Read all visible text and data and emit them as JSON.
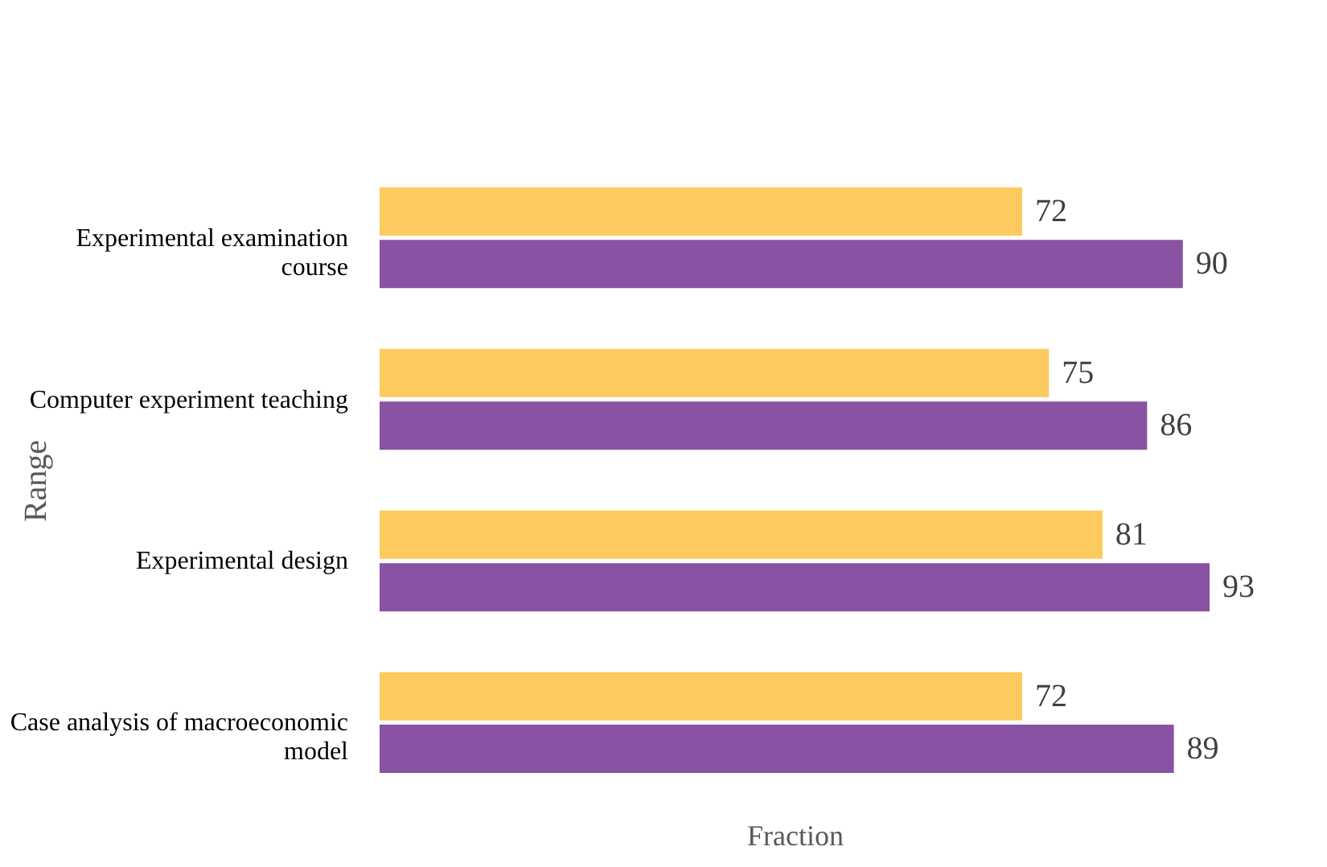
{
  "chart_data": {
    "type": "bar",
    "orientation": "horizontal",
    "xlabel": "Fraction",
    "ylabel": "Range",
    "categories": [
      "Experimental examination course",
      "Computer experiment teaching",
      "Experimental design",
      "Case analysis of macroeconomic model"
    ],
    "series": [
      {
        "color": "#fcca5e",
        "values": [
          72,
          75,
          81,
          72
        ]
      },
      {
        "color": "#8a52a3",
        "values": [
          90,
          86,
          93,
          89
        ]
      }
    ],
    "data_labels": true,
    "grid": false,
    "legend": false,
    "tick_labels": "y"
  }
}
